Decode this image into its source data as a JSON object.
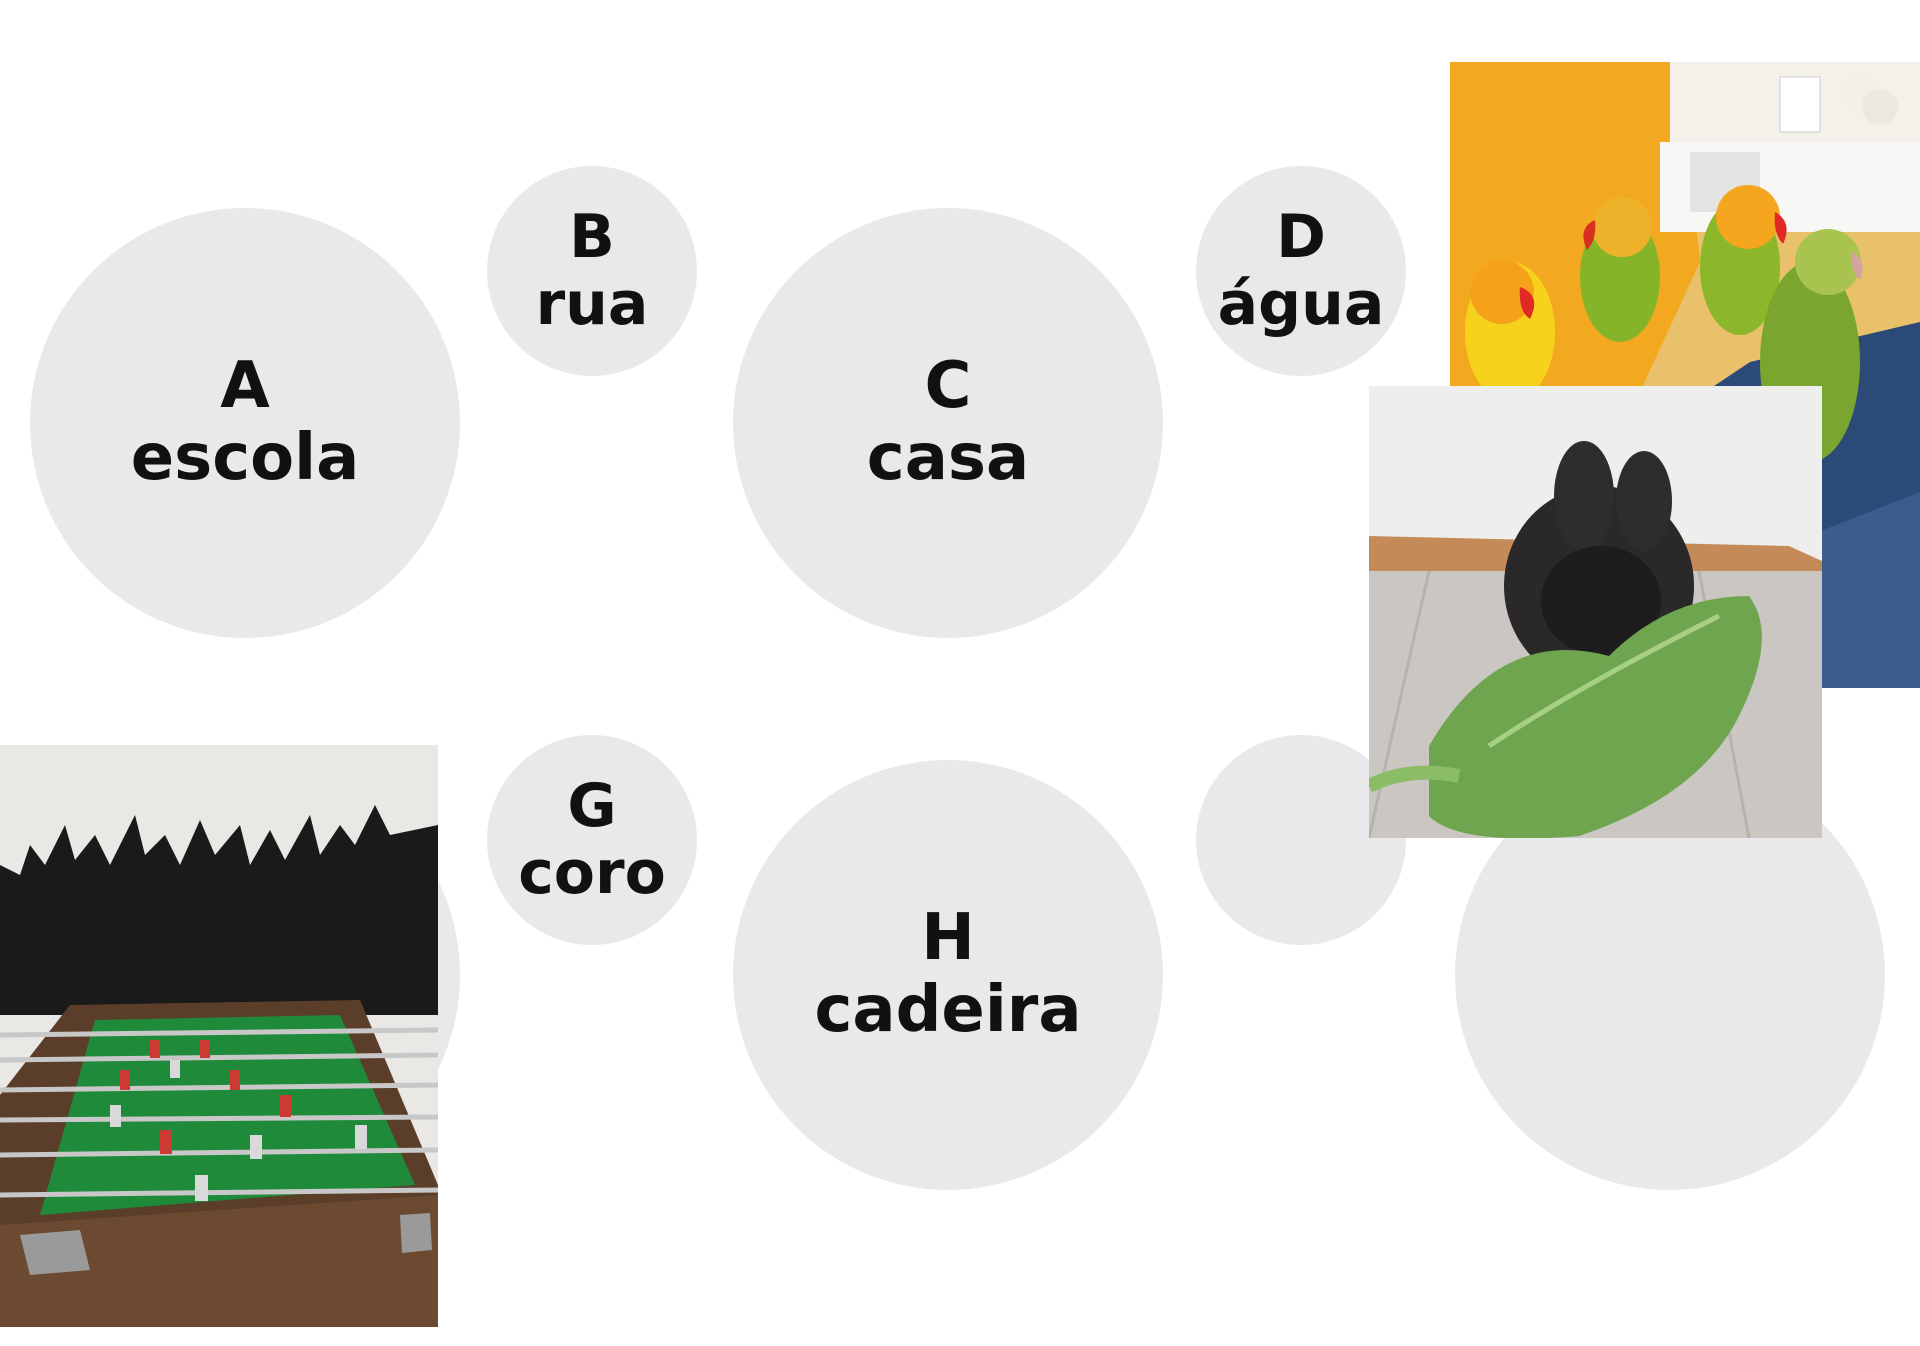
{
  "circles": {
    "a": {
      "letter": "A",
      "word": "escola"
    },
    "b": {
      "letter": "B",
      "word": "rua"
    },
    "c": {
      "letter": "C",
      "word": "casa"
    },
    "d": {
      "letter": "D",
      "word": "água"
    },
    "g": {
      "letter": "G",
      "word": "coro"
    },
    "h": {
      "letter": "H",
      "word": "cadeira"
    }
  },
  "colors": {
    "circle": "#e9e9eb",
    "text": "#111111"
  },
  "photos": {
    "parrots": "parrots-photo",
    "rabbit": "rabbit-photo",
    "foosball": "foosball-photo"
  }
}
